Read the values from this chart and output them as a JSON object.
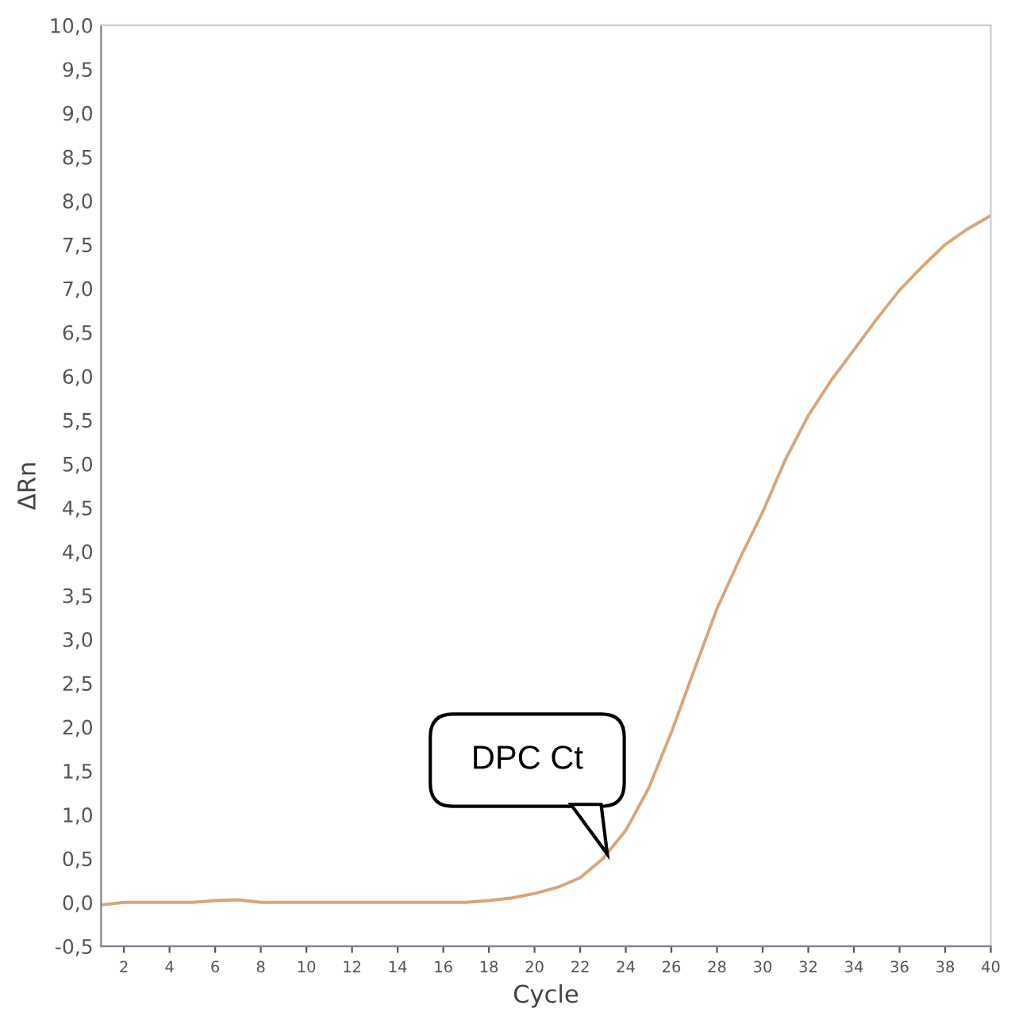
{
  "chart_data": {
    "type": "line",
    "xlabel": "Cycle",
    "ylabel": "ΔRn",
    "x": [
      1,
      2,
      3,
      4,
      5,
      6,
      7,
      8,
      9,
      10,
      11,
      12,
      13,
      14,
      15,
      16,
      17,
      18,
      19,
      20,
      21,
      22,
      23,
      24,
      25,
      26,
      27,
      28,
      29,
      30,
      31,
      32,
      33,
      34,
      35,
      36,
      37,
      38,
      39,
      40
    ],
    "series": [
      {
        "color": "#d9a577",
        "values": [
          -0.03,
          0.0,
          0.0,
          0.0,
          0.0,
          0.02,
          0.03,
          0.0,
          0.0,
          0.0,
          0.0,
          0.0,
          0.0,
          0.0,
          0.0,
          0.0,
          0.0,
          0.02,
          0.05,
          0.1,
          0.17,
          0.28,
          0.5,
          0.82,
          1.3,
          1.94,
          2.65,
          3.35,
          3.92,
          4.45,
          5.05,
          5.55,
          5.95,
          6.3,
          6.65,
          6.98,
          7.25,
          7.5,
          7.68,
          7.83
        ]
      }
    ],
    "xlim": [
      1,
      40
    ],
    "xticks": [
      2,
      4,
      6,
      8,
      10,
      12,
      14,
      16,
      18,
      20,
      22,
      24,
      26,
      28,
      30,
      32,
      34,
      36,
      38,
      40
    ],
    "ylim": [
      -0.5,
      10
    ],
    "yticks": [
      {
        "value": -0.5,
        "label": "-0,5"
      },
      {
        "value": 0,
        "label": "0,0"
      },
      {
        "value": 0.5,
        "label": "0,5"
      },
      {
        "value": 1,
        "label": "1,0"
      },
      {
        "value": 1.5,
        "label": "1,5"
      },
      {
        "value": 2,
        "label": "2,0"
      },
      {
        "value": 2.5,
        "label": "2,5"
      },
      {
        "value": 3,
        "label": "3,0"
      },
      {
        "value": 3.5,
        "label": "3,5"
      },
      {
        "value": 4,
        "label": "4,0"
      },
      {
        "value": 4.5,
        "label": "4,5"
      },
      {
        "value": 5,
        "label": "5,0"
      },
      {
        "value": 5.5,
        "label": "5,5"
      },
      {
        "value": 6,
        "label": "6,0"
      },
      {
        "value": 6.5,
        "label": "6,5"
      },
      {
        "value": 7,
        "label": "7,0"
      },
      {
        "value": 7.5,
        "label": "7,5"
      },
      {
        "value": 8,
        "label": "8,0"
      },
      {
        "value": 8.5,
        "label": "8,5"
      },
      {
        "value": 9,
        "label": "9,0"
      },
      {
        "value": 9.5,
        "label": "9,5"
      },
      {
        "value": 10,
        "label": "10,0"
      }
    ],
    "grid": false,
    "marker": "none",
    "line_style": "solid",
    "annotations": [
      "DPC Ct"
    ]
  }
}
